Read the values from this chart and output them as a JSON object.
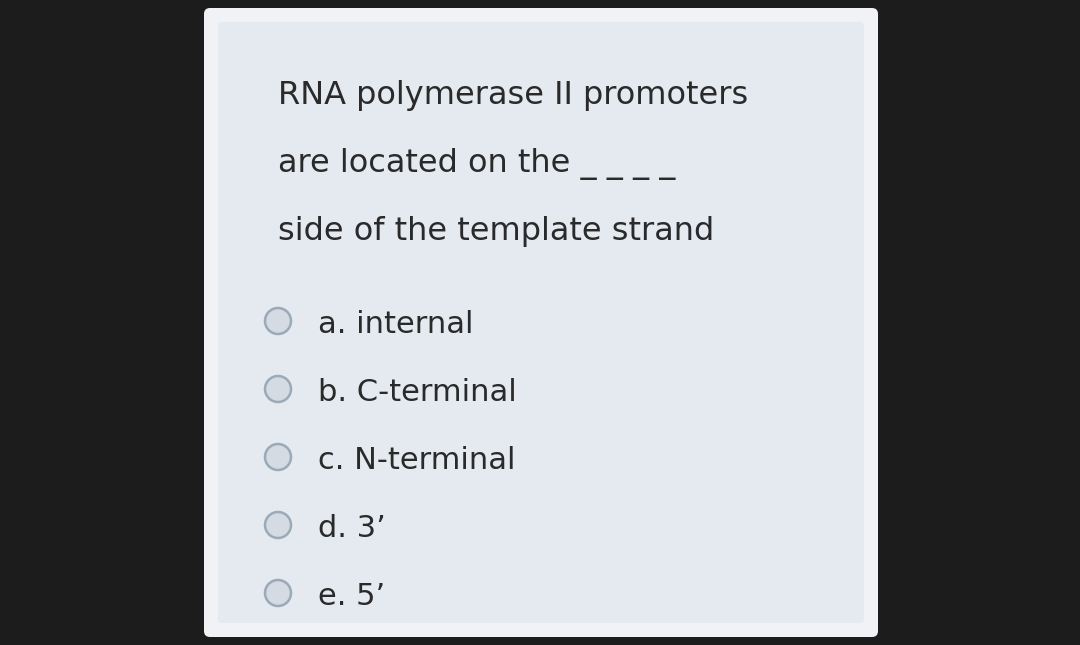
{
  "bg_outer": "#1c1c1c",
  "bg_card_outer": "#f0f2f5",
  "bg_card_inner": "#e4eaf0",
  "title_lines": [
    "RNA polymerase II promoters",
    "are located on the _ _ _ _",
    "side of the template strand"
  ],
  "options": [
    "a. internal",
    "b. C-terminal",
    "c. N-terminal",
    "d. 3’",
    "e. 5’"
  ],
  "text_color": "#2a2a2a",
  "circle_fill": "#d4dbe3",
  "circle_edge": "#9aaab8",
  "title_fontsize": 23,
  "option_fontsize": 22,
  "font_family": "DejaVu Sans"
}
